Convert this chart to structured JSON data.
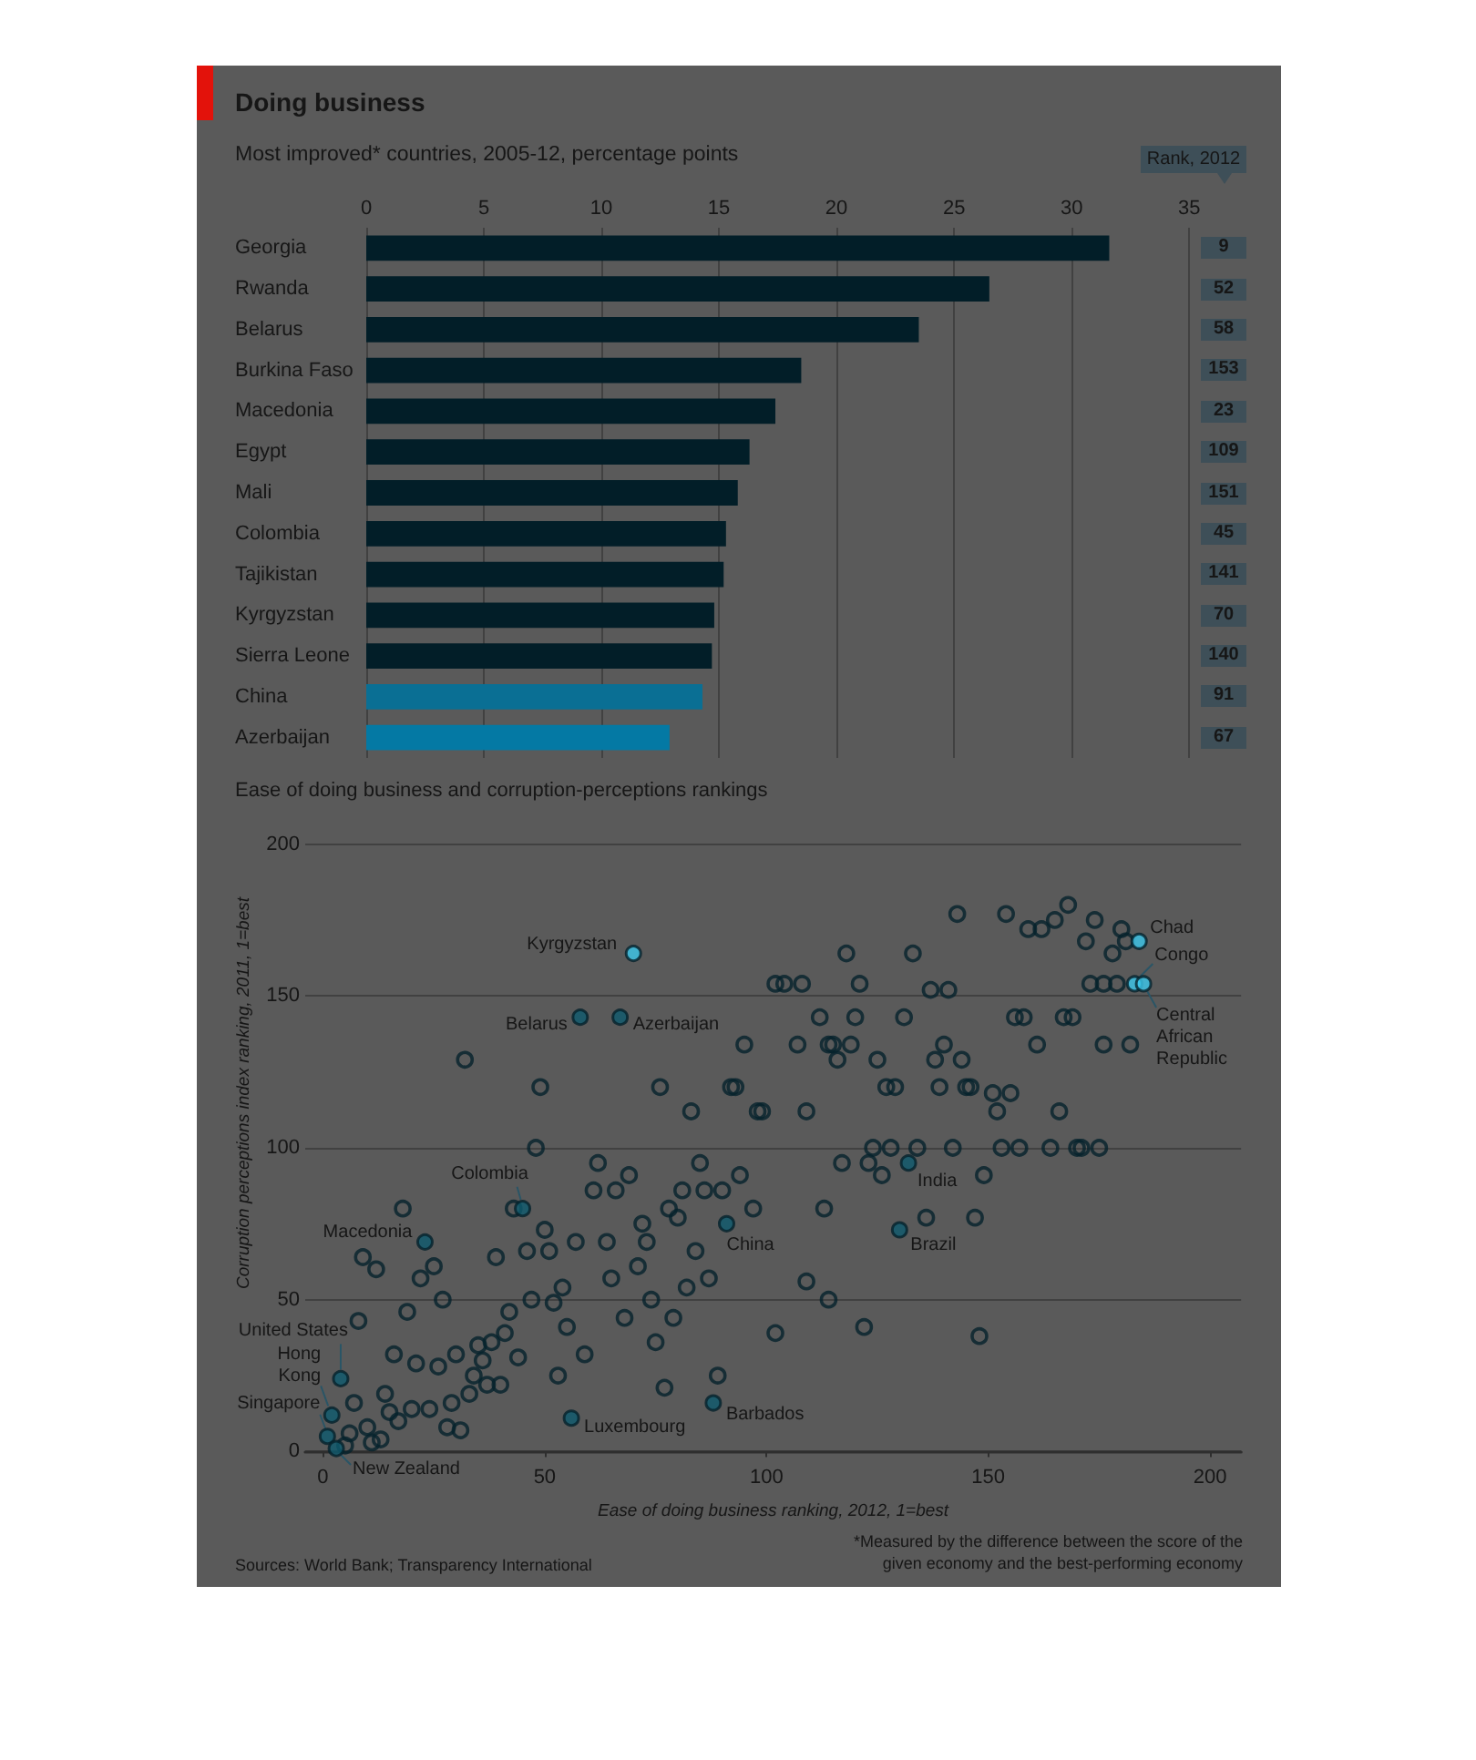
{
  "chart_data": [
    {
      "type": "bar",
      "orientation": "horizontal",
      "title": "Doing business",
      "subtitle": "Most improved* countries, 2005-12, percentage points",
      "categories": [
        "Georgia",
        "Rwanda",
        "Belarus",
        "Burkina Faso",
        "Macedonia",
        "Egypt",
        "Mali",
        "Colombia",
        "Tajikistan",
        "Kyrgyzstan",
        "Sierra Leone",
        "China",
        "Azerbaijan"
      ],
      "values": [
        31.6,
        26.5,
        23.5,
        18.5,
        17.4,
        16.3,
        15.8,
        15.3,
        15.2,
        14.8,
        14.7,
        14.3,
        12.9
      ],
      "colors": [
        "#021e28",
        "#021e28",
        "#021e28",
        "#021e28",
        "#021e28",
        "#021e28",
        "#021e28",
        "#021e28",
        "#021e28",
        "#021e28",
        "#021e28",
        "#0a6f94",
        "#0479a4"
      ],
      "xlim": [
        0,
        35
      ],
      "xticks": [
        0,
        5,
        10,
        15,
        20,
        25,
        30,
        35
      ],
      "grid": "x",
      "annotations": [
        "Rank, 2012",
        "9",
        "52",
        "58",
        "153",
        "23",
        "109",
        "151",
        "45",
        "141",
        "70",
        "140",
        "91",
        "67",
        "*Measured by the difference between the score of the given economy and the best-performing economy"
      ]
    },
    {
      "type": "scatter",
      "title": "Ease of doing business and corruption-perceptions rankings",
      "xlabel": "Ease of doing business ranking, 2012, 1=best",
      "ylabel": "Corruption perceptions index ranking, 2011, 1=best",
      "series": [
        {
          "color": "#05222c",
          "x": [
            143,
            154,
            168,
            159,
            162,
            165,
            174,
            180,
            172,
            181,
            178,
            173,
            176,
            179,
            176,
            182,
            32,
            49,
            48,
            118,
            133,
            102,
            104,
            108,
            121,
            137,
            141,
            112,
            120,
            131,
            156,
            158,
            167,
            169,
            161,
            95,
            107,
            114,
            115,
            119,
            116,
            125,
            138,
            144,
            140,
            76,
            92,
            93,
            127,
            129,
            139,
            145,
            146,
            151,
            155,
            152,
            166,
            83,
            98,
            99,
            109,
            124,
            128,
            134,
            142,
            153,
            157,
            164,
            170,
            171,
            175,
            62,
            85,
            117,
            123,
            126,
            149,
            94,
            97,
            113,
            136,
            147,
            109,
            114,
            102,
            122,
            148,
            61,
            66,
            69,
            86,
            90,
            81,
            78,
            80,
            72,
            73,
            84,
            64,
            57,
            50,
            51,
            46,
            39,
            43,
            18,
            9,
            12,
            22,
            25,
            27,
            19,
            8,
            7,
            6,
            5,
            10,
            11,
            13,
            14,
            15,
            17,
            20,
            24,
            16,
            21,
            26,
            29,
            28,
            31,
            30,
            33,
            34,
            35,
            36,
            37,
            38,
            40,
            41,
            42,
            44,
            47,
            52,
            54,
            55,
            53,
            59,
            68,
            65,
            71,
            74,
            75,
            77,
            79,
            82,
            87,
            89
          ],
          "values": [
            177,
            177,
            180,
            172,
            172,
            175,
            175,
            172,
            168,
            168,
            164,
            154,
            154,
            154,
            134,
            134,
            129,
            120,
            100,
            164,
            164,
            154,
            154,
            154,
            154,
            152,
            152,
            143,
            143,
            143,
            143,
            143,
            143,
            143,
            134,
            134,
            134,
            134,
            134,
            134,
            129,
            129,
            129,
            129,
            134,
            120,
            120,
            120,
            120,
            120,
            120,
            120,
            120,
            118,
            118,
            112,
            112,
            112,
            112,
            112,
            112,
            100,
            100,
            100,
            100,
            100,
            100,
            100,
            100,
            100,
            100,
            95,
            95,
            95,
            95,
            91,
            91,
            91,
            80,
            80,
            77,
            77,
            56,
            50,
            39,
            41,
            38,
            86,
            86,
            91,
            86,
            86,
            86,
            80,
            77,
            75,
            69,
            66,
            69,
            69,
            73,
            66,
            66,
            64,
            80,
            80,
            64,
            60,
            57,
            61,
            50,
            46,
            43,
            16,
            6,
            2,
            8,
            3,
            4,
            19,
            13,
            10,
            14,
            14,
            32,
            29,
            28,
            16,
            8,
            7,
            32,
            19,
            25,
            35,
            30,
            22,
            36,
            22,
            39,
            46,
            31,
            50,
            49,
            54,
            41,
            25,
            32,
            44,
            57,
            61,
            50,
            36,
            21,
            44,
            54,
            57,
            25
          ]
        },
        {
          "colors": [
            "#3cc8ec",
            "#0e5a6e",
            "#0e5a6e",
            "#3cc8ec",
            "#3cc8ec",
            "#3cc8ec",
            "#0e5a6e",
            "#0e5a6e",
            "#0e5a6e",
            "#0e5a6e",
            "#0e5a6e",
            "#0e5a6e",
            "#0e5a6e",
            "#0e5a6e",
            "#0e5a6e",
            "#0e5a6e",
            "#0e5a6e"
          ],
          "x": [
            70,
            58,
            67,
            184,
            183,
            185,
            45,
            23,
            91,
            132,
            130,
            4,
            2,
            1,
            3,
            56,
            88
          ],
          "values": [
            164,
            143,
            143,
            168,
            154,
            154,
            80,
            69,
            75,
            95,
            73,
            24,
            12,
            5,
            1,
            11,
            16
          ]
        }
      ],
      "xlim": [
        -4,
        207
      ],
      "xticks": [
        0,
        50,
        100,
        150,
        200
      ],
      "ylim": [
        0,
        200
      ],
      "yticks": [
        0,
        50,
        100,
        150,
        200
      ],
      "grid": "y",
      "marker": "circle",
      "annotations": [
        {
          "text": "Kyrgyzstan",
          "x": 70,
          "y": 164
        },
        {
          "text": "Belarus",
          "x": 58,
          "y": 143
        },
        {
          "text": "Azerbaijan",
          "x": 67,
          "y": 143
        },
        {
          "text": "Chad",
          "x": 184,
          "y": 168
        },
        {
          "text": "Congo",
          "x": 183,
          "y": 154
        },
        {
          "text": "Central African Republic",
          "x": 185,
          "y": 154
        },
        {
          "text": "Colombia",
          "x": 45,
          "y": 80
        },
        {
          "text": "Macedonia",
          "x": 23,
          "y": 69
        },
        {
          "text": "China",
          "x": 91,
          "y": 75
        },
        {
          "text": "India",
          "x": 132,
          "y": 95
        },
        {
          "text": "Brazil",
          "x": 130,
          "y": 73
        },
        {
          "text": "United States",
          "x": 4,
          "y": 24
        },
        {
          "text": "Hong Kong",
          "x": 2,
          "y": 12
        },
        {
          "text": "Singapore",
          "x": 1,
          "y": 5
        },
        {
          "text": "New Zealand",
          "x": 3,
          "y": 1
        },
        {
          "text": "Luxembourg",
          "x": 56,
          "y": 11
        },
        {
          "text": "Barbados",
          "x": 88,
          "y": 16
        },
        "Sources: World Bank; Transparency International"
      ]
    }
  ]
}
